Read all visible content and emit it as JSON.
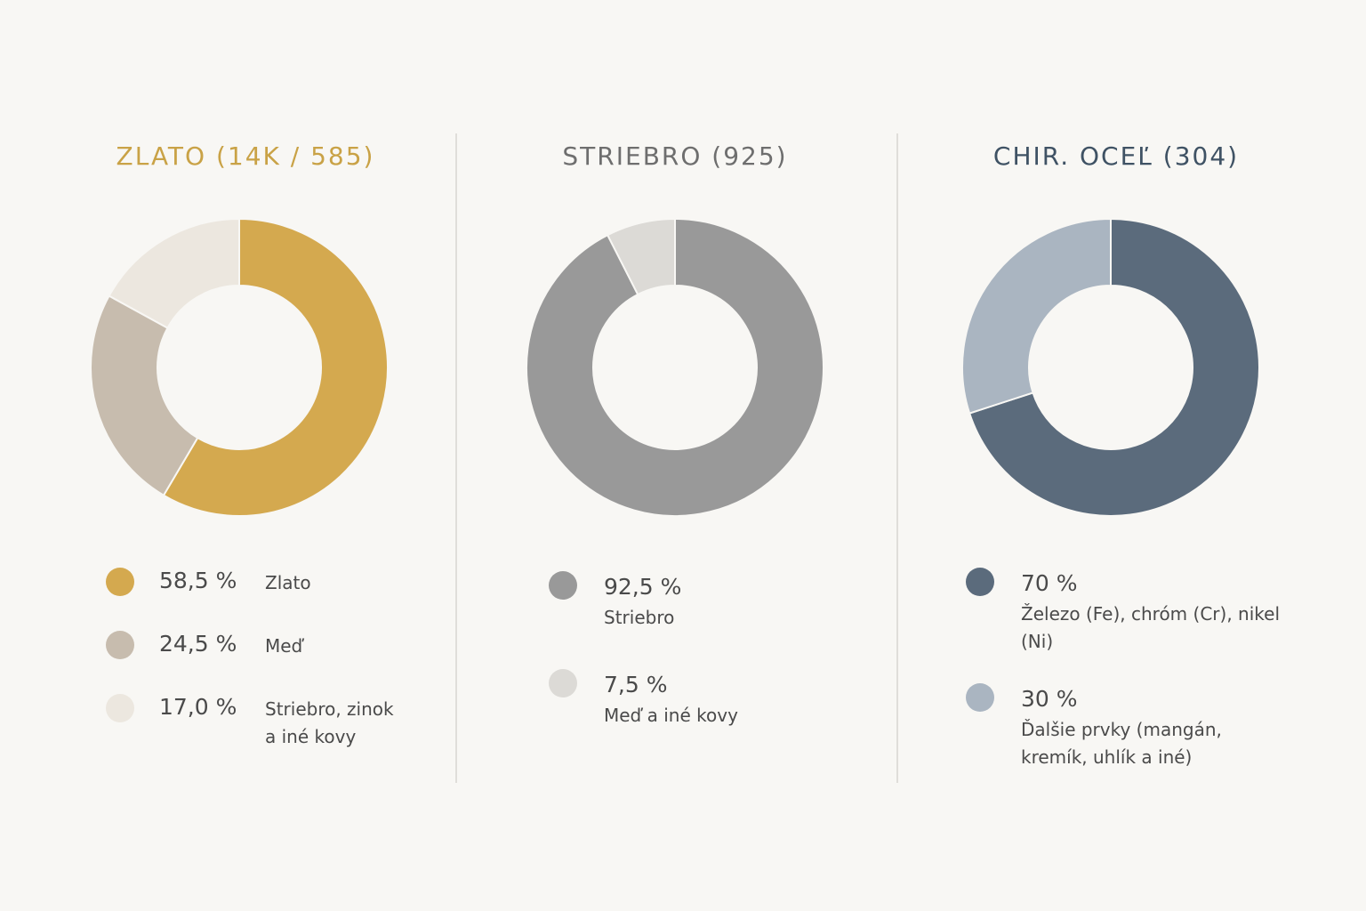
{
  "chart_data": [
    {
      "type": "pie",
      "title": "ZLATO (14K / 585)",
      "title_color": "#c9a246",
      "categories": [
        "Zlato",
        "Meď",
        "Striebro, zinok a iné kovy"
      ],
      "values": [
        58.5,
        24.5,
        17.0
      ],
      "value_labels": [
        "58,5 %",
        "24,5 %",
        "17,0 %"
      ],
      "colors": [
        "#d4a94f",
        "#c7bcae",
        "#ece7df"
      ]
    },
    {
      "type": "pie",
      "title": "STRIEBRO (925)",
      "title_color": "#6e6e6e",
      "categories": [
        "Striebro",
        "Meď a iné kovy"
      ],
      "values": [
        92.5,
        7.5
      ],
      "value_labels": [
        "92,5 %",
        "7,5 %"
      ],
      "colors": [
        "#999999",
        "#dcdad6"
      ]
    },
    {
      "type": "pie",
      "title": "CHIR. OCEĽ (304)",
      "title_color": "#3f5264",
      "categories": [
        "Železo (Fe), chróm (Cr), nikel (Ni)",
        "Ďalšie prvky (mangán, kremík, uhlík a iné)"
      ],
      "values": [
        70,
        30
      ],
      "value_labels": [
        "70 %",
        "30 %"
      ],
      "colors": [
        "#5b6b7c",
        "#aab5c1"
      ]
    }
  ]
}
